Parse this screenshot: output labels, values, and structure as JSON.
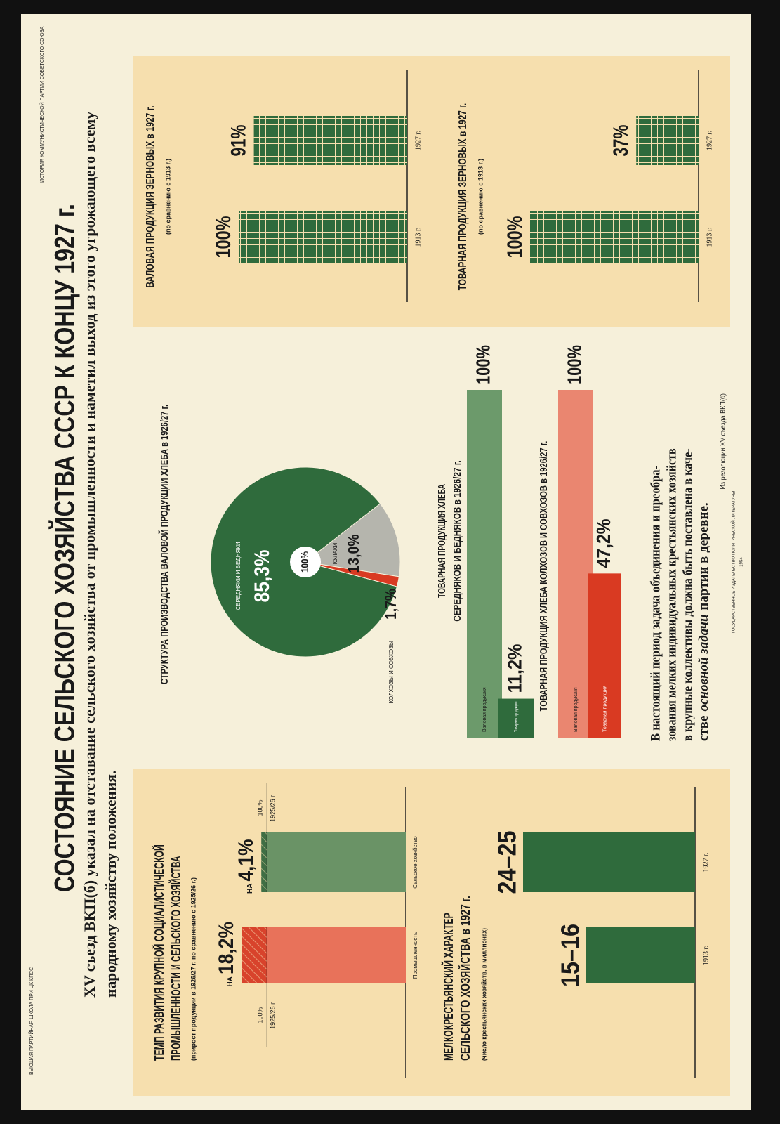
{
  "header": {
    "title": "СОСТОЯНИЕ СЕЛЬСКОГО ХОЗЯЙСТВА СССР К КОНЦУ 1927 г.",
    "subtitle_lines": [
      "XV съезд ВКП(б) указал на отставание сельского хозяйства от промышленности и наметил выход из этого угрожающего всему",
      "народному хозяйству положения."
    ],
    "publisher_top": "ИСТОРИЯ КОММУНИСТИЧЕСКОЙ ПАРТИИ СОВЕТСКОГО СОЮЗА",
    "publisher_bottom": "ВЫСШАЯ ПАРТИЙНАЯ ШКОЛА ПРИ ЦК КПСС"
  },
  "chart_data": [
    {
      "type": "increase_bar",
      "title": [
        "ТЕМП РАЗВИТИЯ КРУПНОЙ СОЦИАЛИСТИЧЕСКОЙ",
        "ПРОМЫШЛЕННОСТИ И СЕЛЬСКОГО ХОЗЯЙСТВА"
      ],
      "subtitle": "(прирост продукции в 1926/27 г. по сравнению с 1925/26 г.)",
      "categories": [
        "Промышленность",
        "Сельское хозяйство"
      ],
      "base": {
        "label": "1925/26 г.",
        "values": [
          100,
          100
        ],
        "value_labels": [
          "100%",
          "100%"
        ],
        "colors": [
          "#e8725a",
          "#6a9366"
        ]
      },
      "increase": {
        "prefix": "НА",
        "values": [
          18.2,
          4.1
        ],
        "value_labels": [
          "18,2%",
          "4,1%"
        ],
        "colors": [
          "#d8432c",
          "#3f6e44"
        ]
      },
      "ylim": [
        0,
        130
      ]
    },
    {
      "type": "bar",
      "title": [
        "МЕЛКОКРЕСТЬЯНСКИЙ ХАРАКТЕР",
        "СЕЛЬСКОГО ХОЗЯЙСТВА в 1927 г."
      ],
      "subtitle": "(число крестьянских хозяйств, в миллионах)",
      "categories": [
        "1913 г.",
        "1927 г."
      ],
      "values": [
        15.5,
        24.5
      ],
      "value_labels": [
        "15–16",
        "24–25"
      ],
      "color": "#2f6b3c",
      "ylim": [
        0,
        25
      ]
    },
    {
      "type": "pie",
      "title": "СТРУКТУРА ПРОИЗВОДСТВА ВАЛОВОЙ ПРОДУКЦИИ ХЛЕБА в 1926/27 г.",
      "center_label": "100%",
      "categories": [
        "СЕРЕДНЯКИ И БЕДНЯКИ",
        "КУЛАКИ",
        "КОЛХОЗЫ И СОВХОЗЫ"
      ],
      "values": [
        85.3,
        13.0,
        1.7
      ],
      "value_labels": [
        "85,3%",
        "13,0%",
        "1,7%"
      ],
      "colors": [
        "#2f6b3c",
        "#b5b5ad",
        "#d93a22"
      ]
    },
    {
      "type": "hbar",
      "title": [
        "ТОВАРНАЯ ПРОДУКЦИЯ ХЛЕБА",
        "СЕРЕДНЯКОВ И БЕДНЯКОВ в 1926/27 г."
      ],
      "categories": [
        "Валовая продукция",
        "Товарная продукция"
      ],
      "values": [
        100,
        11.2
      ],
      "value_labels": [
        "100%",
        "11,2%"
      ],
      "colors": [
        "#6c9a6b",
        "#2f6b3c"
      ],
      "xlim": [
        0,
        100
      ]
    },
    {
      "type": "hbar",
      "title": "ТОВАРНАЯ ПРОДУКЦИЯ ХЛЕБА КОЛХОЗОВ И СОВХОЗОВ в 1926/27 г.",
      "categories": [
        "Валовая продукция",
        "Товарная продукция"
      ],
      "values": [
        100,
        47.2
      ],
      "value_labels": [
        "100%",
        "47,2%"
      ],
      "colors": [
        "#ea8670",
        "#d93a22"
      ],
      "xlim": [
        0,
        100
      ]
    },
    {
      "type": "bar",
      "title": "ВАЛОВАЯ ПРОДУКЦИЯ ЗЕРНОВЫХ в 1927 г.",
      "subtitle": "(по сравнению с 1913 г.)",
      "categories": [
        "1913 г.",
        "1927 г."
      ],
      "values": [
        100,
        91
      ],
      "value_labels": [
        "100%",
        "91%"
      ],
      "color": "#2f6b3c",
      "pattern": "grid",
      "ylim": [
        0,
        100
      ]
    },
    {
      "type": "bar",
      "title": "ТОВАРНАЯ ПРОДУКЦИЯ ЗЕРНОВЫХ в 1927 г.",
      "subtitle": "(по сравнению с 1913 г.)",
      "categories": [
        "1913 г.",
        "1927 г."
      ],
      "values": [
        100,
        37
      ],
      "value_labels": [
        "100%",
        "37%"
      ],
      "color": "#2f6b3c",
      "pattern": "grid",
      "ylim": [
        0,
        100
      ]
    }
  ],
  "quote": {
    "lines": [
      "В настоящий период задача объединения и преобра-",
      "зования мелких индивидуальных крестьянских хозяйств",
      "в крупные коллективы должна быть поставлена в каче-"
    ],
    "last_line": {
      "before": "стве",
      "emphasis": "основной задачи",
      "after": "партии в деревне."
    },
    "source": "Из резолюции XV съезда ВКП(б)"
  },
  "imprint": {
    "publisher": "ГОСУДАРСТВЕННОЕ ИЗДАТЕЛЬСТВО ПОЛИТИЧЕСКОЙ ЛИТЕРАТУРЫ",
    "year": "1954"
  }
}
